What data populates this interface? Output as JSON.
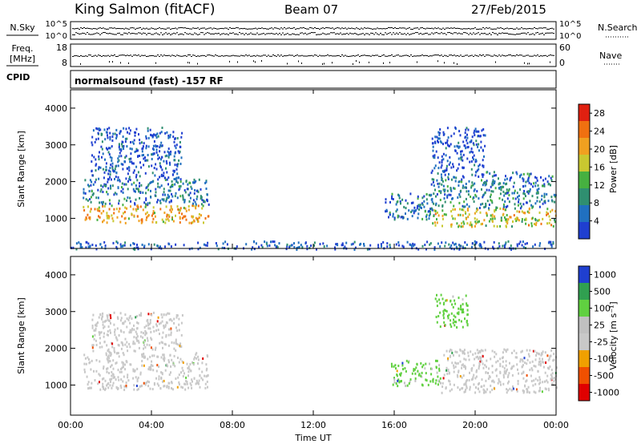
{
  "header": {
    "station": "King Salmon (fitACF)",
    "beam": "Beam 07",
    "date": "27/Feb/2015"
  },
  "noise_panel": {
    "left_label": "N.Sky",
    "right_label": "N.Search",
    "top_tick": "10^5",
    "bottom_tick": "10^0"
  },
  "freq_panel": {
    "left_label_1": "Freq.",
    "left_label_2": "[MHz]",
    "left_top_tick": "18",
    "left_bottom_tick": "8",
    "right_label": "Nave",
    "right_top_tick": "60",
    "right_bottom_tick": "0"
  },
  "cpid_panel": {
    "label": "CPID",
    "text": "normalsound (fast) -157 RF"
  },
  "colors": {
    "power_scale": [
      "#1f3fd0",
      "#2070c0",
      "#2f8f70",
      "#46b040",
      "#c9c830",
      "#f0a020",
      "#f07010",
      "#e02010"
    ],
    "velocity_scale": [
      "#e00000",
      "#f05000",
      "#f0a000",
      "#c8c8c8",
      "#c0c0c0",
      "#60d040",
      "#30a050",
      "#1f3fd0"
    ]
  },
  "chart_data": [
    {
      "type": "heatmap",
      "name": "power",
      "ylabel": "Slant Range [km]",
      "xlabel": "Time UT",
      "x_ticks": [
        "00:00",
        "04:00",
        "08:00",
        "12:00",
        "16:00",
        "20:00",
        "00:00"
      ],
      "y_ticks": [
        "1000",
        "2000",
        "3000",
        "4000"
      ],
      "ylim": [
        180,
        4500
      ],
      "colorbar": {
        "label": "Power [dB]",
        "ticks": [
          "4",
          "8",
          "12",
          "16",
          "20",
          "24",
          "28"
        ],
        "range": [
          0,
          30
        ]
      },
      "regions": [
        {
          "t0": 0.6,
          "t1": 6.8,
          "r0": 900,
          "r1": 1400,
          "level": 20
        },
        {
          "t0": 0.6,
          "t1": 6.8,
          "r0": 1400,
          "r1": 2100,
          "level": 6
        },
        {
          "t0": 1.0,
          "t1": 5.5,
          "r0": 2100,
          "r1": 3500,
          "level": 3
        },
        {
          "t0": 15.5,
          "t1": 18.0,
          "r0": 1000,
          "r1": 1700,
          "level": 6
        },
        {
          "t0": 17.8,
          "t1": 24.0,
          "r0": 800,
          "r1": 1300,
          "level": 17
        },
        {
          "t0": 17.8,
          "t1": 24.0,
          "r0": 1300,
          "r1": 2300,
          "level": 7
        },
        {
          "t0": 17.8,
          "t1": 20.5,
          "r0": 2300,
          "r1": 3500,
          "level": 3
        },
        {
          "t0": 0.0,
          "t1": 24.0,
          "r0": 180,
          "r1": 400,
          "level": 4
        }
      ]
    },
    {
      "type": "heatmap",
      "name": "velocity",
      "ylabel": "Slant Range [km]",
      "xlabel": "Time UT",
      "x_ticks": [
        "00:00",
        "04:00",
        "08:00",
        "12:00",
        "16:00",
        "20:00",
        "00:00"
      ],
      "y_ticks": [
        "1000",
        "2000",
        "3000",
        "4000"
      ],
      "ylim": [
        180,
        4500
      ],
      "colorbar": {
        "label": "Velocity [m s⁻¹]",
        "ticks": [
          "1000",
          "500",
          "100",
          "25",
          "-25",
          "-100",
          "-500",
          "-1000"
        ]
      },
      "regions": [
        {
          "t0": 0.6,
          "t1": 6.8,
          "r0": 900,
          "r1": 1900,
          "level": 0
        },
        {
          "t0": 1.0,
          "t1": 5.5,
          "r0": 1900,
          "r1": 3000,
          "level": 0
        },
        {
          "t0": 15.8,
          "t1": 18.3,
          "r0": 1000,
          "r1": 1700,
          "level": 80
        },
        {
          "t0": 18.3,
          "t1": 24.0,
          "r0": 800,
          "r1": 2000,
          "level": 0
        },
        {
          "t0": 18.0,
          "t1": 19.6,
          "r0": 2600,
          "r1": 3500,
          "level": 200
        }
      ]
    }
  ]
}
